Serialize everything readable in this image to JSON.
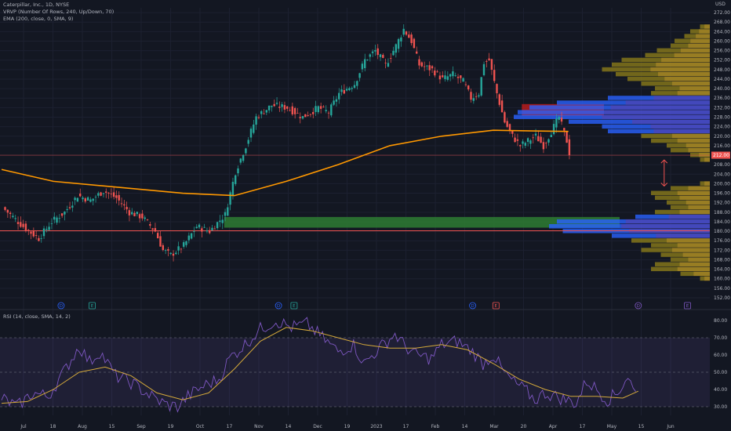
{
  "header": {
    "symbol_line": "Caterpillar, Inc., 1D, NYSE",
    "vrvp_line": "VRVP (Number Of Rows, 240, Up/Down, 70)",
    "ema_line": "EMA (200, close, 0, SMA, 9)",
    "rsi_line": "RSI (14, close, SMA, 14, 2)",
    "currency": "USD"
  },
  "colors": {
    "background": "#131722",
    "up": "#26a69a",
    "down": "#ef5350",
    "ema": "#ff9800",
    "rsi": "#7e57c2",
    "rsi_ma": "#d4a93a",
    "value_area": "#2962ff",
    "volume_up_outside": "#8a7a1a",
    "support_zone": "#2e7d32",
    "supply_zone": "#b71c1c"
  },
  "chart_data": [
    {
      "type": "candlestick",
      "ylim": [
        152,
        274
      ],
      "y_ticks": [
        "272.00",
        "268.00",
        "264.00",
        "260.00",
        "256.00",
        "252.00",
        "248.00",
        "244.00",
        "240.00",
        "236.00",
        "232.00",
        "228.00",
        "224.00",
        "220.00",
        "216.00",
        "212.00",
        "208.00",
        "204.00",
        "200.00",
        "196.00",
        "192.00",
        "188.00",
        "184.00",
        "180.00",
        "176.00",
        "172.00",
        "168.00",
        "164.00",
        "160.00",
        "156.00",
        "152.00"
      ],
      "x_ticks": [
        "Jul",
        "18",
        "Aug",
        "15",
        "Sep",
        "19",
        "Oct",
        "17",
        "Nov",
        "14",
        "Dec",
        "19",
        "2023",
        "17",
        "Feb",
        "14",
        "Mar",
        "20",
        "Apr",
        "17",
        "May",
        "15",
        "Jun"
      ],
      "last_price": 212.0,
      "price_label": "212.00",
      "anchors": [
        [
          0,
          190
        ],
        [
          4,
          186
        ],
        [
          9,
          181
        ],
        [
          14,
          177
        ],
        [
          19,
          184
        ],
        [
          24,
          188
        ],
        [
          29,
          195
        ],
        [
          34,
          193
        ],
        [
          39,
          197
        ],
        [
          44,
          194
        ],
        [
          49,
          188
        ],
        [
          54,
          186
        ],
        [
          59,
          180
        ],
        [
          62,
          172
        ],
        [
          65,
          170
        ],
        [
          70,
          174
        ],
        [
          75,
          182
        ],
        [
          80,
          180
        ],
        [
          86,
          187
        ],
        [
          88,
          196
        ],
        [
          90,
          205
        ],
        [
          94,
          216
        ],
        [
          98,
          228
        ],
        [
          104,
          233
        ],
        [
          110,
          232
        ],
        [
          116,
          228
        ],
        [
          122,
          232
        ],
        [
          126,
          230
        ],
        [
          130,
          238
        ],
        [
          136,
          242
        ],
        [
          140,
          252
        ],
        [
          144,
          256
        ],
        [
          148,
          250
        ],
        [
          152,
          258
        ],
        [
          155,
          265
        ],
        [
          158,
          260
        ],
        [
          161,
          250
        ],
        [
          166,
          248
        ],
        [
          170,
          244
        ],
        [
          174,
          246
        ],
        [
          178,
          243
        ],
        [
          181,
          236
        ],
        [
          184,
          238
        ],
        [
          186,
          251
        ],
        [
          188,
          252
        ],
        [
          191,
          238
        ],
        [
          194,
          226
        ],
        [
          197,
          220
        ],
        [
          200,
          216
        ],
        [
          203,
          218
        ],
        [
          206,
          220
        ],
        [
          209,
          216
        ],
        [
          212,
          222
        ],
        [
          215,
          228
        ],
        [
          218,
          218
        ],
        [
          219,
          213
        ]
      ],
      "ema200": [
        [
          0,
          206
        ],
        [
          20,
          201
        ],
        [
          40,
          199
        ],
        [
          70,
          196
        ],
        [
          90,
          195
        ],
        [
          110,
          201
        ],
        [
          130,
          208
        ],
        [
          150,
          216
        ],
        [
          170,
          220
        ],
        [
          190,
          222.5
        ],
        [
          205,
          222.2
        ],
        [
          219,
          222
        ]
      ],
      "horizontal_lines": [
        212.0,
        180.2
      ],
      "zones": [
        {
          "name": "support-zone",
          "from": 181.5,
          "to": 186.0
        },
        {
          "name": "supply-zone",
          "from": 228.5,
          "to": 233.5
        }
      ],
      "volume_profile": [
        [
          266,
          0.05
        ],
        [
          264,
          0.1
        ],
        [
          262,
          0.13
        ],
        [
          260,
          0.18
        ],
        [
          258,
          0.2
        ],
        [
          256,
          0.27
        ],
        [
          254,
          0.33
        ],
        [
          252,
          0.45
        ],
        [
          250,
          0.5
        ],
        [
          248,
          0.55
        ],
        [
          246,
          0.48
        ],
        [
          244,
          0.42
        ],
        [
          242,
          0.35
        ],
        [
          240,
          0.28
        ],
        [
          238,
          0.3
        ],
        [
          236,
          0.52
        ],
        [
          234,
          0.78
        ],
        [
          232,
          0.92
        ],
        [
          230,
          0.98
        ],
        [
          228,
          1.0
        ],
        [
          226,
          0.72
        ],
        [
          224,
          0.55
        ],
        [
          222,
          0.52
        ],
        [
          220,
          0.35
        ],
        [
          218,
          0.3
        ],
        [
          216,
          0.22
        ],
        [
          214,
          0.2
        ],
        [
          212,
          0.1
        ],
        [
          210,
          0.05
        ],
        [
          200,
          0.05
        ],
        [
          198,
          0.2
        ],
        [
          196,
          0.3
        ],
        [
          194,
          0.28
        ],
        [
          192,
          0.22
        ],
        [
          190,
          0.2
        ],
        [
          188,
          0.28
        ],
        [
          186,
          0.38
        ],
        [
          184,
          0.78
        ],
        [
          182,
          0.82
        ],
        [
          180,
          0.75
        ],
        [
          178,
          0.5
        ],
        [
          176,
          0.4
        ],
        [
          174,
          0.3
        ],
        [
          172,
          0.35
        ],
        [
          170,
          0.25
        ],
        [
          168,
          0.2
        ],
        [
          166,
          0.28
        ],
        [
          164,
          0.3
        ],
        [
          162,
          0.15
        ],
        [
          160,
          0.05
        ]
      ],
      "markers": [
        {
          "label": "D",
          "x": 23,
          "color": "#2962ff"
        },
        {
          "label": "E",
          "x": 35,
          "color": "#26a69a"
        },
        {
          "label": "D",
          "x": 107,
          "color": "#2962ff"
        },
        {
          "label": "E",
          "x": 113,
          "color": "#26a69a"
        },
        {
          "label": "D",
          "x": 182,
          "color": "#2962ff"
        },
        {
          "label": "E",
          "x": 191,
          "color": "#ef5350"
        },
        {
          "label": "D",
          "x": 246,
          "color": "#7e57c2"
        },
        {
          "label": "E",
          "x": 265,
          "color": "#7e57c2"
        }
      ],
      "arrow": {
        "x": 256,
        "from": 210,
        "to": 199
      }
    },
    {
      "type": "line",
      "title": "RSI (14, close, SMA, 14, 2)",
      "ylim": [
        25,
        85
      ],
      "y_ticks": [
        "80.00",
        "70.00",
        "60.00",
        "50.00",
        "40.00",
        "30.00"
      ],
      "bands": [
        30,
        50,
        70
      ],
      "rsi": [
        [
          0,
          35
        ],
        [
          6,
          30
        ],
        [
          12,
          38
        ],
        [
          18,
          36
        ],
        [
          24,
          50
        ],
        [
          30,
          65
        ],
        [
          34,
          56
        ],
        [
          38,
          62
        ],
        [
          44,
          48
        ],
        [
          50,
          44
        ],
        [
          56,
          38
        ],
        [
          60,
          34
        ],
        [
          64,
          31
        ],
        [
          68,
          30
        ],
        [
          72,
          36
        ],
        [
          78,
          42
        ],
        [
          84,
          46
        ],
        [
          88,
          58
        ],
        [
          94,
          66
        ],
        [
          100,
          75
        ],
        [
          106,
          80
        ],
        [
          112,
          76
        ],
        [
          118,
          78
        ],
        [
          124,
          70
        ],
        [
          130,
          62
        ],
        [
          136,
          66
        ],
        [
          140,
          55
        ],
        [
          146,
          64
        ],
        [
          152,
          72
        ],
        [
          156,
          65
        ],
        [
          160,
          60
        ],
        [
          166,
          58
        ],
        [
          170,
          66
        ],
        [
          176,
          68
        ],
        [
          182,
          62
        ],
        [
          186,
          55
        ],
        [
          190,
          60
        ],
        [
          194,
          50
        ],
        [
          198,
          44
        ],
        [
          202,
          40
        ],
        [
          206,
          34
        ],
        [
          210,
          38
        ],
        [
          214,
          36
        ],
        [
          218,
          34
        ],
        [
          222,
          32
        ],
        [
          226,
          45
        ],
        [
          230,
          40
        ],
        [
          234,
          34
        ],
        [
          238,
          38
        ],
        [
          242,
          48
        ],
        [
          244,
          40
        ],
        [
          246,
          35
        ]
      ],
      "rsi_ma": [
        [
          0,
          32
        ],
        [
          10,
          33
        ],
        [
          20,
          40
        ],
        [
          30,
          50
        ],
        [
          40,
          53
        ],
        [
          50,
          48
        ],
        [
          60,
          38
        ],
        [
          70,
          34
        ],
        [
          80,
          38
        ],
        [
          90,
          52
        ],
        [
          100,
          68
        ],
        [
          110,
          76
        ],
        [
          120,
          74
        ],
        [
          130,
          70
        ],
        [
          140,
          66
        ],
        [
          150,
          64
        ],
        [
          160,
          64
        ],
        [
          170,
          66
        ],
        [
          180,
          63
        ],
        [
          190,
          55
        ],
        [
          200,
          46
        ],
        [
          210,
          40
        ],
        [
          220,
          36
        ],
        [
          230,
          36
        ],
        [
          240,
          35
        ],
        [
          246,
          39
        ]
      ]
    }
  ]
}
